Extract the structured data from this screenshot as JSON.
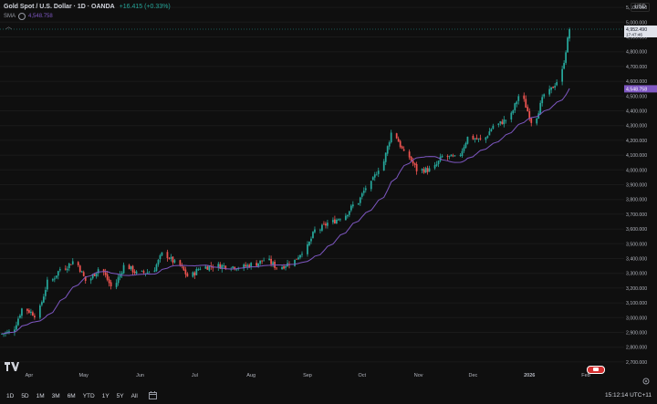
{
  "header": {
    "title": "Gold Spot / U.S. Dollar · 1D · OANDA",
    "change": "+16.415 (+0.33%)",
    "collapse_glyph": "︿",
    "sma_label": "SMA",
    "sma_value": "4,548.758",
    "currency": "USD"
  },
  "price_axis": {
    "labels": [
      "5,100.000",
      "5,000.000",
      "4,900.000",
      "4,800.000",
      "4,700.000",
      "4,600.000",
      "4,500.000",
      "4,400.000",
      "4,300.000",
      "4,200.000",
      "4,100.000",
      "4,000.000",
      "3,900.000",
      "3,800.000",
      "3,700.000",
      "3,600.000",
      "3,500.000",
      "3,400.000",
      "3,300.000",
      "3,200.000",
      "3,100.000",
      "3,000.000",
      "2,900.000",
      "2,800.000",
      "2,700.000"
    ],
    "last_price": "4,952.490",
    "countdown": "17:47:46",
    "sma_tag": "4,548.758"
  },
  "time_axis": {
    "labels": [
      "Apr",
      "May",
      "Jun",
      "Jul",
      "Aug",
      "Sep",
      "Oct",
      "Nov",
      "Dec",
      "2026",
      "Feb"
    ]
  },
  "bottom_bar": {
    "ranges": [
      "1D",
      "5D",
      "1M",
      "3M",
      "6M",
      "YTD",
      "1Y",
      "5Y",
      "All"
    ],
    "clock": "15:12:14 UTC+11"
  },
  "colors": {
    "up": "#26a69a",
    "down": "#ef5350",
    "sma": "#7e57c2",
    "background": "#0f0f0f",
    "last_price_tag": "#26a69a"
  },
  "icons": [
    "tradingview-logo-icon",
    "calendar-icon",
    "settings-icon",
    "goto-realtime-icon",
    "eye-icon",
    "collapse-icon"
  ],
  "chart_data": {
    "type": "candlestick",
    "instrument": "Gold Spot / U.S. Dollar",
    "interval": "1D",
    "ylim": [
      2650,
      5150
    ],
    "log_scale": false,
    "weekly_closes": [
      [
        "2025-03-17",
        2900
      ],
      [
        "2025-03-24",
        3060
      ],
      [
        "2025-03-31",
        3020
      ],
      [
        "2025-04-07",
        3240
      ],
      [
        "2025-04-14",
        3330
      ],
      [
        "2025-04-21",
        3380
      ],
      [
        "2025-04-28",
        3250
      ],
      [
        "2025-05-05",
        3330
      ],
      [
        "2025-05-12",
        3210
      ],
      [
        "2025-05-19",
        3350
      ],
      [
        "2025-05-26",
        3300
      ],
      [
        "2025-06-02",
        3310
      ],
      [
        "2025-06-09",
        3430
      ],
      [
        "2025-06-16",
        3370
      ],
      [
        "2025-06-23",
        3280
      ],
      [
        "2025-06-30",
        3340
      ],
      [
        "2025-07-07",
        3350
      ],
      [
        "2025-07-14",
        3350
      ],
      [
        "2025-07-21",
        3340
      ],
      [
        "2025-07-28",
        3360
      ],
      [
        "2025-08-04",
        3390
      ],
      [
        "2025-08-11",
        3340
      ],
      [
        "2025-08-18",
        3370
      ],
      [
        "2025-08-25",
        3450
      ],
      [
        "2025-09-01",
        3590
      ],
      [
        "2025-09-08",
        3640
      ],
      [
        "2025-09-15",
        3680
      ],
      [
        "2025-09-22",
        3760
      ],
      [
        "2025-09-29",
        3880
      ],
      [
        "2025-10-06",
        4010
      ],
      [
        "2025-10-13",
        4250
      ],
      [
        "2025-10-20",
        4110
      ],
      [
        "2025-10-27",
        4000
      ],
      [
        "2025-11-03",
        4000
      ],
      [
        "2025-11-10",
        4090
      ],
      [
        "2025-11-17",
        4080
      ],
      [
        "2025-11-24",
        4220
      ],
      [
        "2025-12-01",
        4200
      ],
      [
        "2025-12-08",
        4300
      ],
      [
        "2025-12-15",
        4340
      ],
      [
        "2025-12-22",
        4500
      ],
      [
        "2025-12-29",
        4330
      ],
      [
        "2026-01-05",
        4510
      ],
      [
        "2026-01-12",
        4600
      ],
      [
        "2026-01-19",
        4950
      ]
    ],
    "sma_value_last": 4548.758,
    "last_price": 4952.49
  }
}
